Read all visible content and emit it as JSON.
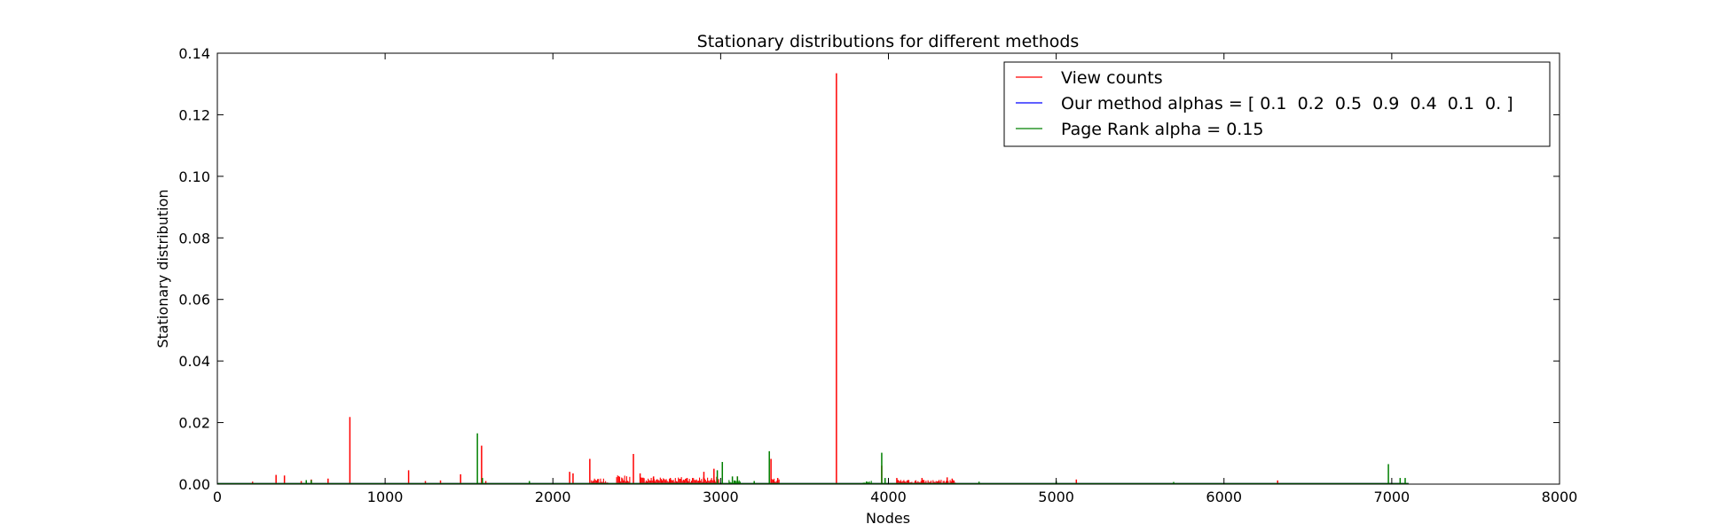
{
  "chart_data": {
    "type": "line",
    "title": "Stationary distributions for different methods",
    "xlabel": "Nodes",
    "ylabel": "Stationary distribution",
    "xlim": [
      0,
      8000
    ],
    "ylim": [
      0,
      0.14
    ],
    "xticks": [
      0,
      1000,
      2000,
      3000,
      4000,
      5000,
      6000,
      7000,
      8000
    ],
    "yticks": [
      0.0,
      0.02,
      0.04,
      0.06,
      0.08,
      0.1,
      0.12,
      0.14
    ],
    "xtick_labels": [
      "0",
      "1000",
      "2000",
      "3000",
      "4000",
      "5000",
      "6000",
      "7000",
      "8000"
    ],
    "ytick_labels": [
      "0.00",
      "0.02",
      "0.04",
      "0.06",
      "0.08",
      "0.10",
      "0.12",
      "0.14"
    ],
    "grid": false,
    "legend_position": "top-right",
    "series": [
      {
        "name": "View counts",
        "color": "#ff0000",
        "points": [
          [
            210,
            0.0008
          ],
          [
            350,
            0.003
          ],
          [
            400,
            0.0028
          ],
          [
            500,
            0.001
          ],
          [
            560,
            0.0015
          ],
          [
            660,
            0.0018
          ],
          [
            790,
            0.0218
          ],
          [
            1140,
            0.0045
          ],
          [
            1240,
            0.001
          ],
          [
            1330,
            0.0012
          ],
          [
            1450,
            0.0032
          ],
          [
            1575,
            0.0125
          ],
          [
            1600,
            0.001
          ],
          [
            2100,
            0.004
          ],
          [
            2120,
            0.0035
          ],
          [
            2220,
            0.0082
          ],
          [
            2480,
            0.0098
          ],
          [
            2520,
            0.0035
          ],
          [
            2600,
            0.0025
          ],
          [
            2700,
            0.002
          ],
          [
            2800,
            0.002
          ],
          [
            2900,
            0.004
          ],
          [
            2960,
            0.005
          ],
          [
            3100,
            0.0025
          ],
          [
            3300,
            0.0082
          ],
          [
            3340,
            0.002
          ],
          [
            3690,
            0.1335
          ],
          [
            3960,
            0.006
          ],
          [
            4050,
            0.002
          ],
          [
            4200,
            0.002
          ],
          [
            4350,
            0.0022
          ],
          [
            4380,
            0.0018
          ],
          [
            5120,
            0.0015
          ],
          [
            6320,
            0.0012
          ]
        ],
        "noise_ranges": [
          [
            2230,
            2330,
            0.0015
          ],
          [
            2380,
            2460,
            0.0025
          ],
          [
            2520,
            2990,
            0.002
          ],
          [
            3300,
            3350,
            0.0015
          ],
          [
            4050,
            4400,
            0.0012
          ]
        ]
      },
      {
        "name": "Our method alphas = [ 0.1  0.2  0.5  0.9  0.4  0.1  0. ]",
        "color": "#0000ff",
        "points": []
      },
      {
        "name": "Page Rank alpha = 0.15",
        "color": "#008000",
        "points": [
          [
            530,
            0.0013
          ],
          [
            560,
            0.0013
          ],
          [
            1550,
            0.0165
          ],
          [
            1580,
            0.002
          ],
          [
            1860,
            0.001
          ],
          [
            2980,
            0.0045
          ],
          [
            3010,
            0.0072
          ],
          [
            3070,
            0.0025
          ],
          [
            3100,
            0.0025
          ],
          [
            3200,
            0.001
          ],
          [
            3290,
            0.0107
          ],
          [
            3960,
            0.0102
          ],
          [
            3980,
            0.002
          ],
          [
            4540,
            0.0008
          ],
          [
            5000,
            0.001
          ],
          [
            5700,
            0.0007
          ],
          [
            6980,
            0.0065
          ],
          [
            7050,
            0.002
          ],
          [
            7080,
            0.002
          ]
        ],
        "noise_ranges": [
          [
            3050,
            3120,
            0.0012
          ],
          [
            3850,
            3900,
            0.001
          ]
        ]
      }
    ]
  }
}
